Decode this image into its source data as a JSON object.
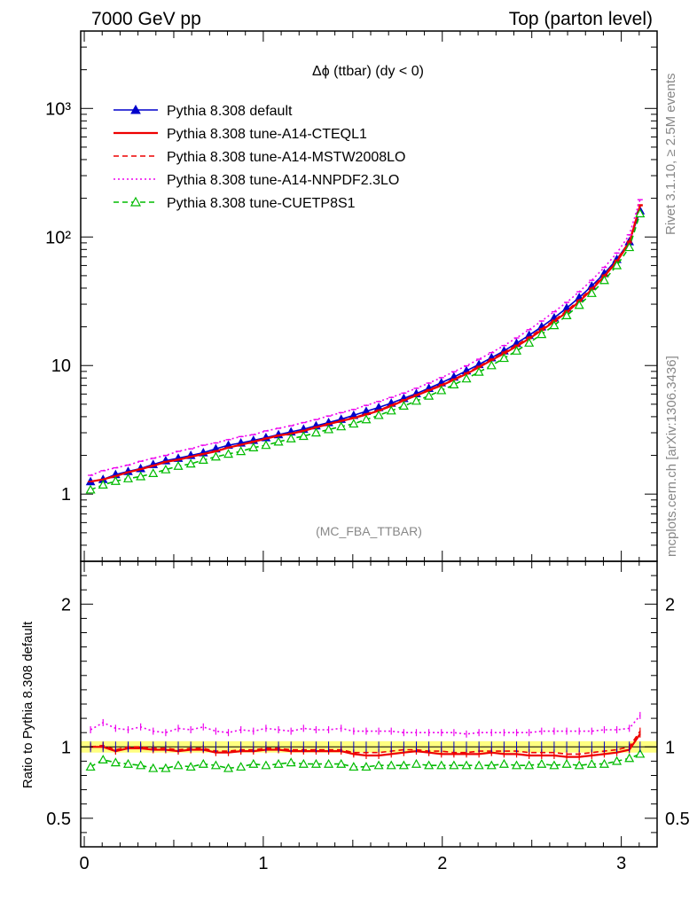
{
  "header": {
    "left": "7000 GeV pp",
    "right": "Top (parton level)"
  },
  "side_labels": {
    "rivet": "Rivet 3.1.10, ≥ 2.5M events",
    "mcplots": "mcplots.cern.ch [arXiv:1306.3436]"
  },
  "chart_data": {
    "type": "line",
    "title": "Δϕ (ttbar) (dy < 0)",
    "analysis_tag": "(MC_FBA_TTBAR)",
    "x": [
      0.035,
      0.105,
      0.175,
      0.245,
      0.315,
      0.385,
      0.455,
      0.525,
      0.595,
      0.665,
      0.735,
      0.805,
      0.875,
      0.945,
      1.015,
      1.085,
      1.155,
      1.225,
      1.295,
      1.365,
      1.435,
      1.505,
      1.575,
      1.645,
      1.715,
      1.785,
      1.855,
      1.925,
      1.995,
      2.065,
      2.135,
      2.205,
      2.275,
      2.345,
      2.415,
      2.485,
      2.555,
      2.625,
      2.695,
      2.765,
      2.835,
      2.905,
      2.975,
      3.045,
      3.105
    ],
    "xlim": [
      -0.02,
      3.2
    ],
    "xticks": [
      0,
      1,
      2,
      3
    ],
    "main_panel": {
      "ylog": true,
      "ylim": [
        0.3,
        4000
      ],
      "ytick_labels": [
        "1",
        "10",
        "10²",
        "10³"
      ],
      "series": [
        {
          "name": "Pythia 8.308 default",
          "color": "#0000cc",
          "style": "solid",
          "marker": "triangle-filled",
          "values": [
            1.25,
            1.3,
            1.42,
            1.5,
            1.58,
            1.7,
            1.82,
            1.9,
            2.0,
            2.1,
            2.25,
            2.4,
            2.5,
            2.62,
            2.75,
            2.9,
            3.05,
            3.2,
            3.4,
            3.6,
            3.82,
            4.1,
            4.4,
            4.72,
            5.1,
            5.55,
            6.05,
            6.65,
            7.35,
            8.15,
            9.1,
            10.2,
            11.5,
            13.0,
            14.9,
            17.2,
            20.0,
            23.5,
            28.0,
            33.8,
            41.5,
            52.0,
            67.0,
            92.0,
            160.0
          ]
        },
        {
          "name": "Pythia 8.308 tune-A14-CTEQL1",
          "color": "#ee0000",
          "style": "solid",
          "marker": "none",
          "values": [
            1.25,
            1.3,
            1.38,
            1.48,
            1.56,
            1.66,
            1.78,
            1.85,
            1.95,
            2.05,
            2.15,
            2.3,
            2.42,
            2.55,
            2.7,
            2.85,
            2.95,
            3.1,
            3.3,
            3.5,
            3.7,
            3.9,
            4.15,
            4.45,
            4.85,
            5.35,
            5.85,
            6.4,
            7.0,
            7.75,
            8.6,
            9.7,
            11.0,
            12.4,
            14.1,
            16.2,
            18.8,
            22.0,
            26.0,
            31.5,
            39.0,
            49.5,
            64.5,
            90.0,
            175.0
          ]
        },
        {
          "name": "Pythia 8.308 tune-A14-MSTW2008LO",
          "color": "#ee0000",
          "style": "dashed",
          "marker": "none",
          "values": [
            1.25,
            1.3,
            1.38,
            1.48,
            1.57,
            1.67,
            1.79,
            1.86,
            1.96,
            2.06,
            2.17,
            2.31,
            2.43,
            2.57,
            2.72,
            2.87,
            2.97,
            3.13,
            3.33,
            3.53,
            3.73,
            3.94,
            4.2,
            4.5,
            4.92,
            5.42,
            5.92,
            6.48,
            7.1,
            7.85,
            8.75,
            9.85,
            11.2,
            12.7,
            14.4,
            16.6,
            19.3,
            22.5,
            26.7,
            32.3,
            40.0,
            50.5,
            66.0,
            92.5,
            178.0
          ]
        },
        {
          "name": "Pythia 8.308 tune-A14-NNPDF2.3LO",
          "color": "#ee00ee",
          "style": "dotted",
          "marker": "none",
          "values": [
            1.4,
            1.52,
            1.6,
            1.68,
            1.8,
            1.9,
            2.0,
            2.15,
            2.25,
            2.4,
            2.5,
            2.65,
            2.8,
            2.9,
            3.1,
            3.25,
            3.4,
            3.6,
            3.8,
            4.05,
            4.3,
            4.55,
            4.9,
            5.25,
            5.65,
            6.1,
            6.65,
            7.3,
            8.05,
            8.95,
            9.95,
            11.2,
            12.6,
            14.3,
            16.4,
            19.0,
            22.2,
            26.2,
            31.0,
            37.5,
            46.0,
            58.0,
            75.0,
            104.0,
            195.0
          ]
        },
        {
          "name": "Pythia 8.308 tune-CUETP8S1",
          "color": "#00bb00",
          "style": "dashed",
          "marker": "triangle-open",
          "values": [
            1.08,
            1.18,
            1.26,
            1.32,
            1.37,
            1.45,
            1.55,
            1.65,
            1.72,
            1.84,
            1.95,
            2.05,
            2.15,
            2.3,
            2.4,
            2.55,
            2.7,
            2.82,
            3.0,
            3.18,
            3.35,
            3.52,
            3.8,
            4.1,
            4.45,
            4.85,
            5.3,
            5.8,
            6.4,
            7.1,
            7.9,
            8.9,
            10.0,
            11.4,
            13.0,
            15.0,
            17.5,
            20.5,
            24.5,
            29.5,
            36.5,
            46.0,
            60.0,
            83.0,
            152.0
          ]
        }
      ]
    },
    "ratio_panel": {
      "ylabel": "Ratio to Pythia 8.308 default",
      "ylim": [
        0.3,
        2.3
      ],
      "yticks": [
        0.5,
        1,
        2
      ],
      "ytick_labels": [
        "0.5",
        "1",
        "2"
      ],
      "band": {
        "low": 0.96,
        "high": 1.04,
        "color": "#ffff80"
      },
      "series": [
        {
          "name": "Pythia 8.308 tune-A14-CTEQL1",
          "color": "#ee0000",
          "style": "solid",
          "values": [
            1.0,
            1.0,
            0.97,
            0.99,
            0.99,
            0.98,
            0.98,
            0.97,
            0.98,
            0.98,
            0.96,
            0.96,
            0.97,
            0.97,
            0.98,
            0.98,
            0.97,
            0.97,
            0.97,
            0.97,
            0.97,
            0.95,
            0.94,
            0.94,
            0.95,
            0.96,
            0.97,
            0.96,
            0.95,
            0.95,
            0.95,
            0.95,
            0.96,
            0.95,
            0.95,
            0.94,
            0.94,
            0.94,
            0.93,
            0.93,
            0.94,
            0.95,
            0.96,
            0.98,
            1.09
          ]
        },
        {
          "name": "Pythia 8.308 tune-A14-MSTW2008LO",
          "color": "#ee0000",
          "style": "dashed",
          "values": [
            1.0,
            1.01,
            0.98,
            1.0,
            1.0,
            0.99,
            0.99,
            0.98,
            0.99,
            0.99,
            0.97,
            0.97,
            0.98,
            0.98,
            0.99,
            0.99,
            0.98,
            0.98,
            0.98,
            0.98,
            0.98,
            0.96,
            0.96,
            0.96,
            0.97,
            0.98,
            0.98,
            0.97,
            0.97,
            0.96,
            0.96,
            0.97,
            0.97,
            0.97,
            0.97,
            0.96,
            0.96,
            0.96,
            0.95,
            0.95,
            0.96,
            0.97,
            0.98,
            1.0,
            1.11
          ]
        },
        {
          "name": "Pythia 8.308 tune-A14-NNPDF2.3LO",
          "color": "#ee00ee",
          "style": "dotted",
          "values": [
            1.12,
            1.17,
            1.13,
            1.12,
            1.14,
            1.11,
            1.1,
            1.13,
            1.12,
            1.14,
            1.11,
            1.1,
            1.12,
            1.11,
            1.13,
            1.12,
            1.11,
            1.13,
            1.12,
            1.12,
            1.13,
            1.11,
            1.11,
            1.11,
            1.11,
            1.1,
            1.1,
            1.1,
            1.1,
            1.1,
            1.09,
            1.1,
            1.1,
            1.1,
            1.1,
            1.1,
            1.11,
            1.11,
            1.11,
            1.11,
            1.11,
            1.12,
            1.12,
            1.13,
            1.22
          ]
        },
        {
          "name": "Pythia 8.308 tune-CUETP8S1",
          "color": "#00bb00",
          "style": "dashed",
          "values": [
            0.86,
            0.91,
            0.89,
            0.88,
            0.87,
            0.85,
            0.85,
            0.87,
            0.86,
            0.88,
            0.87,
            0.85,
            0.86,
            0.88,
            0.87,
            0.88,
            0.89,
            0.88,
            0.88,
            0.88,
            0.88,
            0.86,
            0.86,
            0.87,
            0.87,
            0.87,
            0.88,
            0.87,
            0.87,
            0.87,
            0.87,
            0.87,
            0.87,
            0.88,
            0.87,
            0.87,
            0.88,
            0.87,
            0.88,
            0.87,
            0.88,
            0.88,
            0.9,
            0.92,
            0.95
          ]
        }
      ]
    }
  }
}
